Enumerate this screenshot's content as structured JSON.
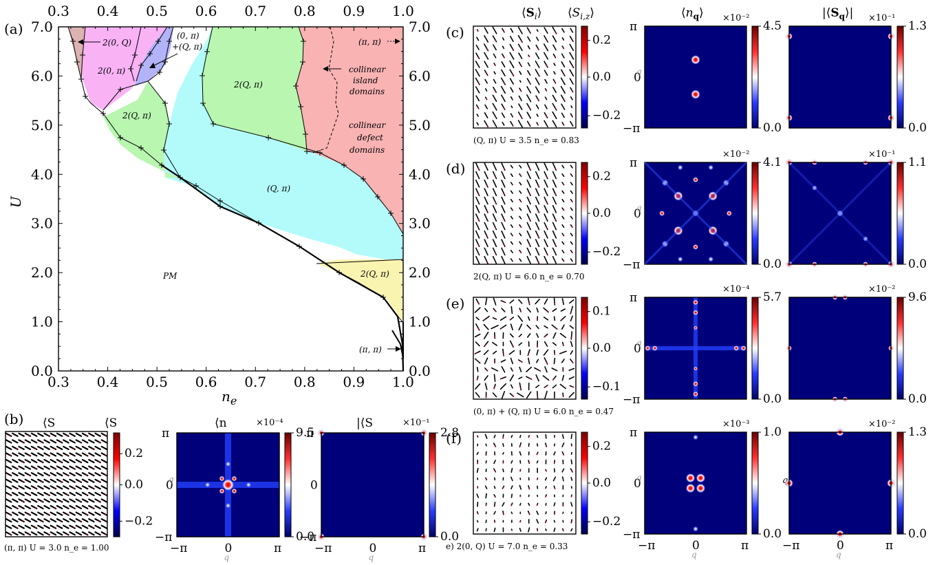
{
  "panel_labels": {
    "a": "(a)",
    "b": "(b)",
    "c": "(c)",
    "d": "(d)",
    "e": "(e)",
    "f": "(f)"
  },
  "phase_diagram": {
    "xlabel": "n_e",
    "ylabel": "U",
    "x_ticks": [
      "0.3",
      "0.4",
      "0.5",
      "0.6",
      "0.7",
      "0.8",
      "0.9",
      "1.0"
    ],
    "y_ticks": [
      "0.0",
      "1.0",
      "2.0",
      "3.0",
      "4.0",
      "5.0",
      "6.0",
      "7.0"
    ],
    "regions": {
      "pm": "PM",
      "q_pi": "(Q, π)",
      "two_q_pi_left": "2(Q, π)",
      "two_q_pi_mid": "2(Q, π)",
      "two_q_pi_right": "2(Q, π)",
      "two_zero_pi": "2(0, π)",
      "two_zero_q": "2(0, Q)",
      "zero_pi_plus_q_pi_line1": "(0, π)",
      "zero_pi_plus_q_pi_line2": "+(Q, π)",
      "pi_pi_top": "(π, π)",
      "pi_pi_bottom": "(π, π)",
      "island_1": "collinear",
      "island_2": "island",
      "island_3": "domains",
      "defect_1": "collinear",
      "defect_2": "defect",
      "defect_3": "domains"
    },
    "colors": {
      "pink": "#f9b3b3",
      "magenta": "#f9b3f5",
      "blue": "#b3b3f9",
      "green": "#b9f6b0",
      "cyan": "#b3fbfb",
      "yellow": "#faf4b1",
      "brown": "#dbb3b0",
      "white": "#ffffff"
    }
  },
  "column_headers": {
    "spin": "⟨S_i⟩",
    "spin_z": "⟨S_{i,z}⟩",
    "density": "⟨n_q⟩",
    "spin_q": "|⟨S_q⟩|"
  },
  "axis_labels": {
    "qx": "q_x",
    "qy": "q_y",
    "pi": "π",
    "neg_pi": "−π",
    "zero": "0"
  },
  "panels": [
    {
      "id": "b",
      "caption": "(π, π) U = 3.0 n_e = 1.00",
      "spin_colorbar": {
        "ticks": [
          "0.2",
          "0.0",
          "−0.2"
        ]
      },
      "density_colorbar": {
        "max": "9.5",
        "min": "0.0",
        "scale": "×10⁻⁴"
      },
      "spinq_colorbar": {
        "max": "2.8",
        "min": "0.0",
        "scale": "×10⁻¹"
      }
    },
    {
      "id": "c",
      "caption": "(Q, π) U = 3.5 n_e = 0.83",
      "spin_colorbar": {
        "ticks": [
          "0.2",
          "0.0",
          "−0.2"
        ]
      },
      "density_colorbar": {
        "max": "4.5",
        "min": "0.0",
        "scale": "×10⁻²"
      },
      "spinq_colorbar": {
        "max": "1.3",
        "min": "0.0",
        "scale": "×10⁻¹"
      }
    },
    {
      "id": "d",
      "caption": "2(Q, π) U = 6.0 n_e = 0.70",
      "spin_colorbar": {
        "ticks": [
          "0.2",
          "0.0",
          "−0.2"
        ]
      },
      "density_colorbar": {
        "max": "4.1",
        "min": "0.0",
        "scale": "×10⁻²"
      },
      "spinq_colorbar": {
        "max": "1.1",
        "min": "0.0",
        "scale": "×10⁻¹"
      }
    },
    {
      "id": "e",
      "caption": "(0, π) + (Q, π) U = 6.0 n_e = 0.47",
      "spin_colorbar": {
        "ticks": [
          "0.1",
          "0.0",
          "−0.1"
        ]
      },
      "density_colorbar": {
        "max": "5.7",
        "min": "0.0",
        "scale": "×10⁻⁴"
      },
      "spinq_colorbar": {
        "max": "9.6",
        "min": "0.0",
        "scale": "×10⁻²"
      }
    },
    {
      "id": "f",
      "caption": "e)  2(0, Q) U = 7.0 n_e = 0.33",
      "spin_colorbar": {
        "ticks": [
          "0.2",
          "0.0",
          "−0.2"
        ]
      },
      "density_colorbar": {
        "max": "1.0",
        "min": "0.0",
        "scale": "×10⁻³"
      },
      "spinq_colorbar": {
        "max": "1.3",
        "min": "0.0",
        "scale": "×10⁻²"
      }
    }
  ]
}
